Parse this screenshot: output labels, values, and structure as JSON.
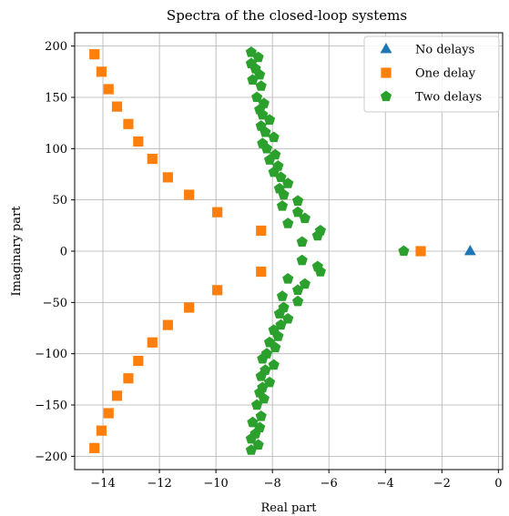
{
  "chart_data": {
    "type": "scatter",
    "title": "Spectra of the closed-loop systems",
    "xlabel": "Real part",
    "ylabel": "Imaginary part",
    "xlim": [
      -15.0,
      0.15
    ],
    "ylim": [
      -213,
      213
    ],
    "xticks": [
      -14,
      -12,
      -10,
      -8,
      -6,
      -4,
      -2,
      0
    ],
    "yticks": [
      -200,
      -150,
      -100,
      -50,
      0,
      50,
      100,
      150,
      200
    ],
    "xtick_labels": [
      "−14",
      "−12",
      "−10",
      "−8",
      "−6",
      "−4",
      "−2",
      "0"
    ],
    "ytick_labels": [
      "−200",
      "−150",
      "−100",
      "−50",
      "0",
      "50",
      "100",
      "150",
      "200"
    ],
    "grid": true,
    "legend_position": "top-right",
    "series": [
      {
        "name": "No delays",
        "marker": "triangle",
        "color": "#1f77b4",
        "points": [
          [
            -1.0,
            0
          ]
        ]
      },
      {
        "name": "One delay",
        "marker": "square",
        "color": "#ff7f0e",
        "points": [
          [
            -14.3,
            192
          ],
          [
            -14.05,
            175
          ],
          [
            -13.8,
            158
          ],
          [
            -13.5,
            141
          ],
          [
            -13.1,
            124
          ],
          [
            -12.75,
            107
          ],
          [
            -12.25,
            90
          ],
          [
            -11.7,
            72
          ],
          [
            -10.95,
            55
          ],
          [
            -9.95,
            38
          ],
          [
            -8.4,
            20
          ],
          [
            -2.75,
            0
          ],
          [
            -8.4,
            -20
          ],
          [
            -9.95,
            -38
          ],
          [
            -10.95,
            -55
          ],
          [
            -11.7,
            -72
          ],
          [
            -12.25,
            -89
          ],
          [
            -12.75,
            -107
          ],
          [
            -13.1,
            -124
          ],
          [
            -13.5,
            -141
          ],
          [
            -13.8,
            -158
          ],
          [
            -14.05,
            -175
          ],
          [
            -14.3,
            -192
          ]
        ]
      },
      {
        "name": "Two delays",
        "marker": "pentagon",
        "color": "#2ca02c",
        "points": [
          [
            -8.75,
            194
          ],
          [
            -8.5,
            189
          ],
          [
            -8.75,
            183
          ],
          [
            -8.6,
            178
          ],
          [
            -8.45,
            172
          ],
          [
            -8.7,
            167
          ],
          [
            -8.4,
            161
          ],
          [
            -8.55,
            150
          ],
          [
            -8.3,
            144
          ],
          [
            -8.45,
            138
          ],
          [
            -8.35,
            133
          ],
          [
            -8.1,
            128
          ],
          [
            -8.4,
            122
          ],
          [
            -8.25,
            116
          ],
          [
            -7.95,
            111
          ],
          [
            -8.35,
            105
          ],
          [
            -8.2,
            100
          ],
          [
            -7.9,
            94
          ],
          [
            -8.1,
            89
          ],
          [
            -7.8,
            83
          ],
          [
            -7.95,
            77
          ],
          [
            -7.7,
            72
          ],
          [
            -7.45,
            66
          ],
          [
            -7.75,
            61
          ],
          [
            -7.6,
            55
          ],
          [
            -7.1,
            49
          ],
          [
            -7.65,
            44
          ],
          [
            -7.1,
            38
          ],
          [
            -6.85,
            32
          ],
          [
            -7.45,
            27
          ],
          [
            -6.3,
            20
          ],
          [
            -6.4,
            15
          ],
          [
            -6.95,
            9
          ],
          [
            -3.35,
            0
          ],
          [
            -6.95,
            -9
          ],
          [
            -6.4,
            -15
          ],
          [
            -6.3,
            -20
          ],
          [
            -7.45,
            -27
          ],
          [
            -6.85,
            -32
          ],
          [
            -7.1,
            -38
          ],
          [
            -7.65,
            -44
          ],
          [
            -7.1,
            -49
          ],
          [
            -7.6,
            -55
          ],
          [
            -7.75,
            -61
          ],
          [
            -7.45,
            -66
          ],
          [
            -7.7,
            -72
          ],
          [
            -7.95,
            -77
          ],
          [
            -7.8,
            -83
          ],
          [
            -8.1,
            -89
          ],
          [
            -7.9,
            -94
          ],
          [
            -8.2,
            -100
          ],
          [
            -8.35,
            -105
          ],
          [
            -7.95,
            -111
          ],
          [
            -8.25,
            -116
          ],
          [
            -8.4,
            -122
          ],
          [
            -8.1,
            -128
          ],
          [
            -8.35,
            -133
          ],
          [
            -8.45,
            -138
          ],
          [
            -8.3,
            -144
          ],
          [
            -8.55,
            -150
          ],
          [
            -8.4,
            -161
          ],
          [
            -8.7,
            -167
          ],
          [
            -8.45,
            -172
          ],
          [
            -8.6,
            -178
          ],
          [
            -8.75,
            -183
          ],
          [
            -8.5,
            -189
          ],
          [
            -8.75,
            -194
          ]
        ]
      }
    ]
  }
}
